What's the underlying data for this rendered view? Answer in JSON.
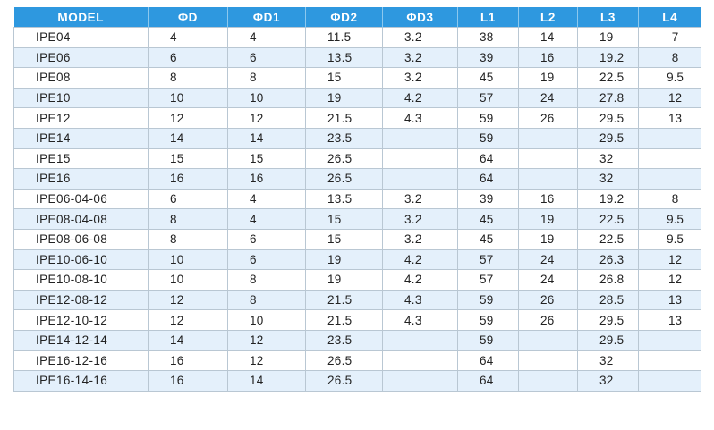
{
  "header": {
    "columns": [
      "MODEL",
      "ΦD",
      "ΦD1",
      "ΦD2",
      "ΦD3",
      "L1",
      "L2",
      "L3",
      "L4"
    ]
  },
  "rows": [
    [
      "IPE04",
      "4",
      "4",
      "11.5",
      "3.2",
      "38",
      "14",
      "19",
      "7"
    ],
    [
      "IPE06",
      "6",
      "6",
      "13.5",
      "3.2",
      "39",
      "16",
      "19.2",
      "8"
    ],
    [
      "IPE08",
      "8",
      "8",
      "15",
      "3.2",
      "45",
      "19",
      "22.5",
      "9.5"
    ],
    [
      "IPE10",
      "10",
      "10",
      "19",
      "4.2",
      "57",
      "24",
      "27.8",
      "12"
    ],
    [
      "IPE12",
      "12",
      "12",
      "21.5",
      "4.3",
      "59",
      "26",
      "29.5",
      "13"
    ],
    [
      "IPE14",
      "14",
      "14",
      "23.5",
      "",
      "59",
      "",
      "29.5",
      ""
    ],
    [
      "IPE15",
      "15",
      "15",
      "26.5",
      "",
      "64",
      "",
      "32",
      ""
    ],
    [
      "IPE16",
      "16",
      "16",
      "26.5",
      "",
      "64",
      "",
      "32",
      ""
    ],
    [
      "IPE06-04-06",
      "6",
      "4",
      "13.5",
      "3.2",
      "39",
      "16",
      "19.2",
      "8"
    ],
    [
      "IPE08-04-08",
      "8",
      "4",
      "15",
      "3.2",
      "45",
      "19",
      "22.5",
      "9.5"
    ],
    [
      "IPE08-06-08",
      "8",
      "6",
      "15",
      "3.2",
      "45",
      "19",
      "22.5",
      "9.5"
    ],
    [
      "IPE10-06-10",
      "10",
      "6",
      "19",
      "4.2",
      "57",
      "24",
      "26.3",
      "12"
    ],
    [
      "IPE10-08-10",
      "10",
      "8",
      "19",
      "4.2",
      "57",
      "24",
      "26.8",
      "12"
    ],
    [
      "IPE12-08-12",
      "12",
      "8",
      "21.5",
      "4.3",
      "59",
      "26",
      "28.5",
      "13"
    ],
    [
      "IPE12-10-12",
      "12",
      "10",
      "21.5",
      "4.3",
      "59",
      "26",
      "29.5",
      "13"
    ],
    [
      "IPE14-12-14",
      "14",
      "12",
      "23.5",
      "",
      "59",
      "",
      "29.5",
      ""
    ],
    [
      "IPE16-12-16",
      "16",
      "12",
      "26.5",
      "",
      "64",
      "",
      "32",
      ""
    ],
    [
      "IPE16-14-16",
      "16",
      "14",
      "26.5",
      "",
      "64",
      "",
      "32",
      ""
    ]
  ],
  "colors": {
    "header_bg": "#2e98df",
    "header_text": "#ffffff",
    "row_alt_bg": "#e4f0fb",
    "row_bg": "#ffffff",
    "border": "#b9c7d3"
  }
}
